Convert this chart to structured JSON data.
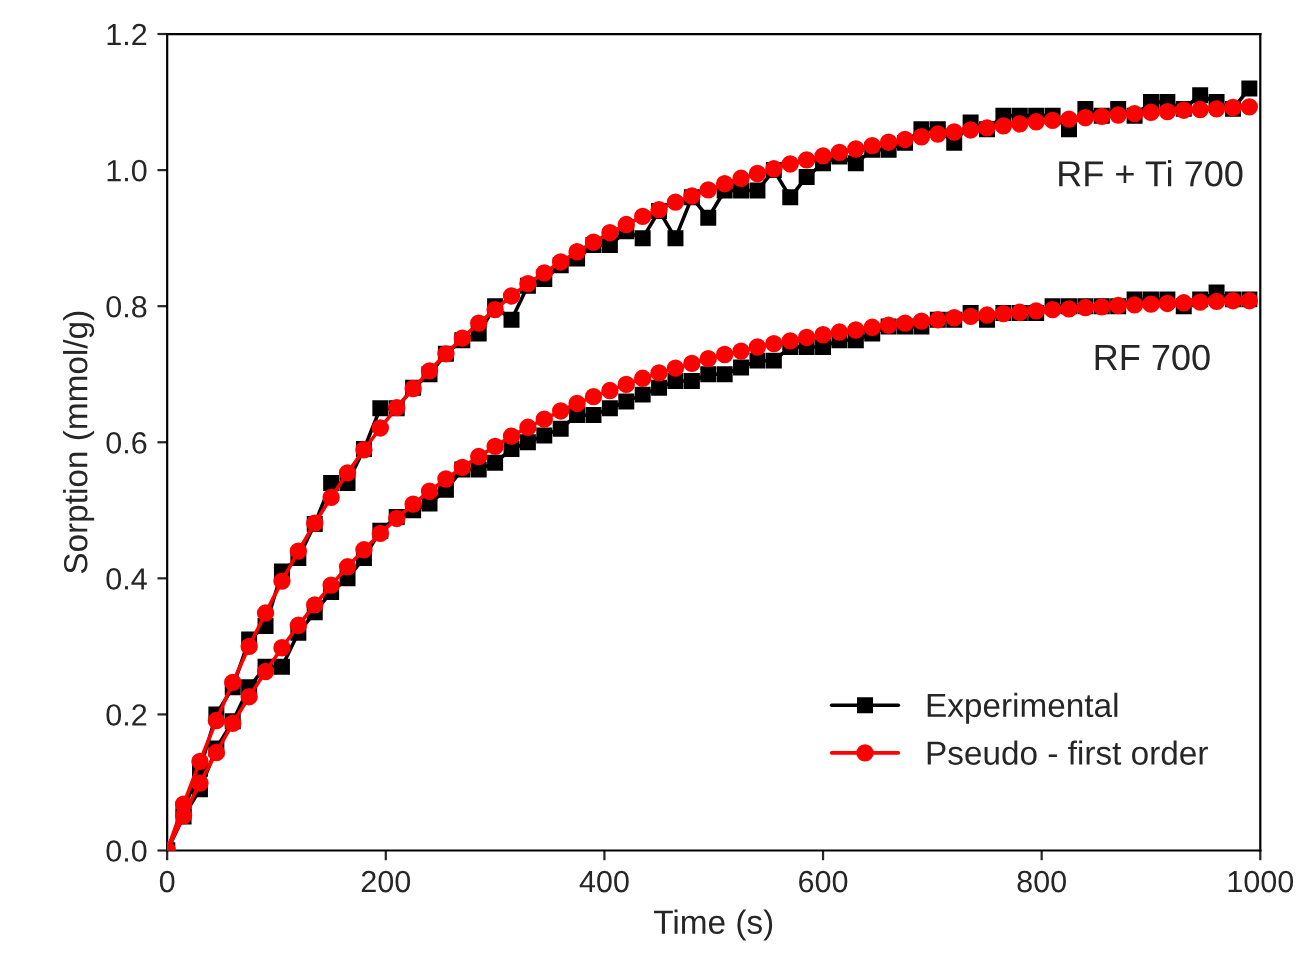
{
  "chart_data": {
    "type": "line",
    "xlabel": "Time (s)",
    "ylabel": "Sorption (mmol/g)",
    "x": [
      0,
      15,
      30,
      45,
      60,
      75,
      90,
      105,
      120,
      135,
      150,
      165,
      180,
      195,
      210,
      225,
      240,
      255,
      270,
      285,
      300,
      315,
      330,
      345,
      360,
      375,
      390,
      405,
      420,
      435,
      450,
      465,
      480,
      495,
      510,
      525,
      540,
      555,
      570,
      585,
      600,
      615,
      630,
      645,
      660,
      675,
      690,
      705,
      720,
      735,
      750,
      765,
      780,
      795,
      810,
      825,
      840,
      855,
      870,
      885,
      900,
      915,
      930,
      945,
      960,
      975,
      990
    ],
    "series": [
      {
        "name": "Experimental",
        "color": "#000000",
        "marker": "square",
        "values": [
          0,
          0.06,
          0.12,
          0.2,
          0.24,
          0.31,
          0.33,
          0.41,
          0.43,
          0.48,
          0.54,
          0.54,
          0.59,
          0.65,
          0.65,
          0.68,
          0.7,
          0.73,
          0.75,
          0.76,
          0.8,
          0.78,
          0.83,
          0.84,
          0.86,
          0.87,
          0.89,
          0.89,
          0.91,
          0.9,
          0.94,
          0.9,
          0.96,
          0.93,
          0.97,
          0.97,
          0.97,
          1.0,
          0.96,
          0.99,
          1.01,
          1.02,
          1.01,
          1.03,
          1.03,
          1.04,
          1.06,
          1.06,
          1.04,
          1.07,
          1.06,
          1.08,
          1.08,
          1.08,
          1.08,
          1.06,
          1.09,
          1.08,
          1.09,
          1.08,
          1.1,
          1.1,
          1.09,
          1.11,
          1.1,
          1.09,
          1.12
        ]
      },
      {
        "color": "#000000",
        "marker": "square",
        "values": [
          0,
          0.05,
          0.09,
          0.15,
          0.19,
          0.24,
          0.27,
          0.27,
          0.32,
          0.35,
          0.38,
          0.4,
          0.43,
          0.47,
          0.49,
          0.5,
          0.51,
          0.53,
          0.56,
          0.56,
          0.57,
          0.59,
          0.6,
          0.61,
          0.62,
          0.64,
          0.64,
          0.65,
          0.66,
          0.67,
          0.68,
          0.69,
          0.69,
          0.7,
          0.7,
          0.71,
          0.72,
          0.72,
          0.74,
          0.74,
          0.74,
          0.75,
          0.75,
          0.76,
          0.77,
          0.77,
          0.77,
          0.78,
          0.78,
          0.79,
          0.78,
          0.79,
          0.79,
          0.79,
          0.8,
          0.8,
          0.8,
          0.8,
          0.8,
          0.81,
          0.81,
          0.81,
          0.8,
          0.81,
          0.82,
          0.81,
          0.81
        ]
      },
      {
        "name": "Pseudo - first order",
        "color": "#ff0000",
        "marker": "circle",
        "values": [
          0,
          0.068,
          0.131,
          0.191,
          0.247,
          0.3,
          0.349,
          0.396,
          0.44,
          0.481,
          0.519,
          0.555,
          0.589,
          0.621,
          0.651,
          0.679,
          0.705,
          0.73,
          0.753,
          0.775,
          0.795,
          0.815,
          0.833,
          0.849,
          0.865,
          0.88,
          0.894,
          0.908,
          0.92,
          0.932,
          0.942,
          0.953,
          0.962,
          0.971,
          0.98,
          0.988,
          0.995,
          1.002,
          1.009,
          1.015,
          1.021,
          1.026,
          1.031,
          1.036,
          1.041,
          1.045,
          1.049,
          1.053,
          1.056,
          1.059,
          1.062,
          1.065,
          1.068,
          1.071,
          1.073,
          1.075,
          1.077,
          1.079,
          1.081,
          1.083,
          1.085,
          1.086,
          1.088,
          1.089,
          1.09,
          1.092,
          1.093
        ]
      },
      {
        "color": "#ff0000",
        "marker": "circle",
        "values": [
          0,
          0.051,
          0.099,
          0.144,
          0.187,
          0.226,
          0.263,
          0.298,
          0.331,
          0.361,
          0.39,
          0.417,
          0.442,
          0.466,
          0.488,
          0.509,
          0.528,
          0.546,
          0.563,
          0.579,
          0.594,
          0.609,
          0.622,
          0.634,
          0.646,
          0.657,
          0.667,
          0.676,
          0.685,
          0.694,
          0.702,
          0.709,
          0.716,
          0.723,
          0.729,
          0.734,
          0.74,
          0.745,
          0.749,
          0.754,
          0.758,
          0.762,
          0.765,
          0.769,
          0.772,
          0.775,
          0.778,
          0.78,
          0.783,
          0.785,
          0.787,
          0.789,
          0.791,
          0.793,
          0.795,
          0.796,
          0.798,
          0.799,
          0.801,
          0.802,
          0.803,
          0.804,
          0.805,
          0.806,
          0.807,
          0.808,
          0.808
        ]
      }
    ],
    "xlim": [
      0,
      1000
    ],
    "xticks": [
      0,
      200,
      400,
      600,
      800,
      1000
    ],
    "ylim": [
      0,
      1.2
    ],
    "yticks": [
      {
        "value": 0,
        "label": "0.0"
      },
      {
        "value": 0.2,
        "label": "0.2"
      },
      {
        "value": 0.4,
        "label": "0.4"
      },
      {
        "value": 0.6,
        "label": "0.6"
      },
      {
        "value": 0.8,
        "label": "0.8"
      },
      {
        "value": 1.0,
        "label": "1.0"
      },
      {
        "value": 1.2,
        "label": "1.2"
      }
    ],
    "annotations": [
      "RF + Ti 700",
      "RF 700"
    ],
    "legend": "bottom right",
    "grid": false,
    "line_style": "solid"
  }
}
